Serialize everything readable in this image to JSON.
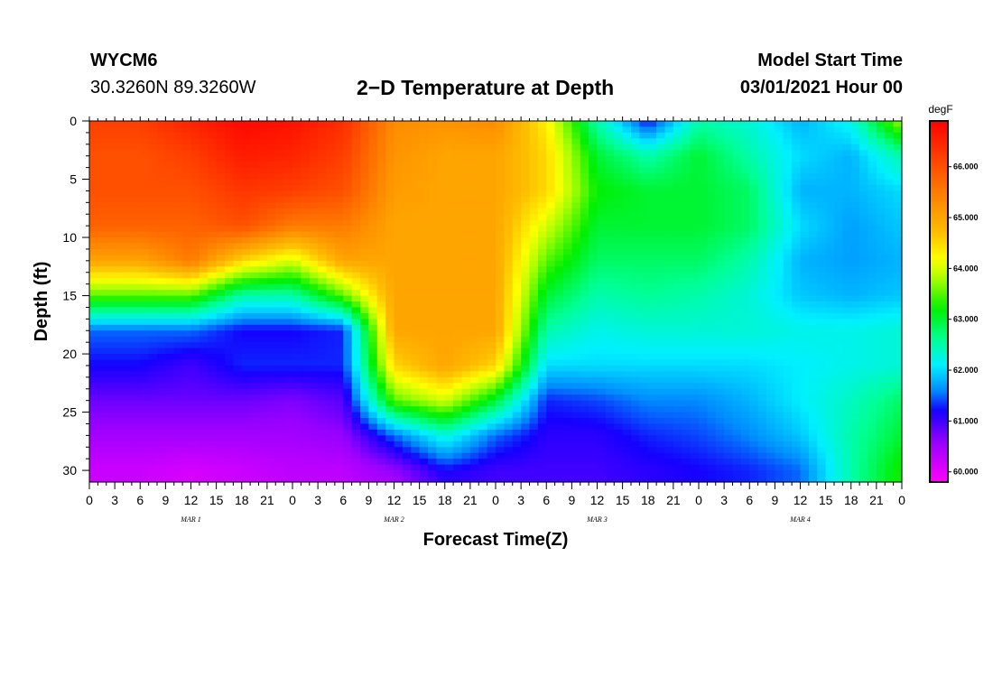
{
  "header": {
    "station": "WYCM6",
    "coords": "30.3260N 89.3260W",
    "title": "2−D Temperature at Depth",
    "start_label": "Model Start Time",
    "start_time": "03/01/2021 Hour 00"
  },
  "chart_data": {
    "type": "heatmap",
    "title": "2−D Temperature at Depth",
    "xlabel": "Forecast Time(Z)",
    "ylabel": "Depth (ft)",
    "x_hours": [
      0,
      96
    ],
    "x_tick_labels": [
      "0",
      "3",
      "6",
      "9",
      "12",
      "15",
      "18",
      "21",
      "0",
      "3",
      "6",
      "9",
      "12",
      "15",
      "18",
      "21",
      "0",
      "3",
      "6",
      "9",
      "12",
      "15",
      "18",
      "21",
      "0",
      "3",
      "6",
      "9",
      "12",
      "15",
      "18",
      "21",
      "0"
    ],
    "date_labels": [
      {
        "text": "MAR  1",
        "hour": 12
      },
      {
        "text": "MAR  2",
        "hour": 36
      },
      {
        "text": "MAR  3",
        "hour": 60
      },
      {
        "text": "MAR  4",
        "hour": 84
      }
    ],
    "ylim": [
      0,
      31
    ],
    "y_ticks": [
      0,
      5,
      10,
      15,
      20,
      25,
      30
    ],
    "colorbar": {
      "unit": "degF",
      "range": [
        59.8,
        66.9
      ],
      "ticks": [
        60,
        61,
        62,
        63,
        64,
        65,
        66
      ],
      "tick_labels": [
        "60.000",
        "61.000",
        "62.000",
        "63.000",
        "64.000",
        "65.000",
        "66.000"
      ]
    },
    "depths_ft": [
      0,
      3,
      6,
      9,
      12,
      15,
      18,
      21,
      24,
      27,
      30,
      31
    ],
    "times_hr": [
      0,
      6,
      12,
      18,
      24,
      30,
      36,
      42,
      48,
      54,
      60,
      66,
      72,
      78,
      84,
      90,
      96
    ],
    "temperature_degF": [
      [
        66.2,
        66.2,
        66.5,
        66.8,
        66.7,
        66.4,
        65.3,
        65.2,
        65.3,
        64.3,
        62.5,
        61.2,
        62.5,
        62.3,
        61.8,
        62.2,
        63.8
      ],
      [
        66.0,
        66.0,
        66.2,
        66.6,
        66.5,
        66.2,
        65.2,
        65.0,
        65.0,
        64.5,
        63.0,
        62.5,
        63.0,
        62.5,
        62.0,
        61.8,
        62.5
      ],
      [
        66.0,
        66.0,
        66.0,
        66.3,
        66.2,
        66.0,
        65.1,
        65.0,
        65.0,
        64.5,
        63.2,
        63.0,
        63.0,
        62.8,
        61.8,
        61.8,
        62.0
      ],
      [
        65.8,
        65.8,
        65.8,
        66.0,
        65.5,
        65.5,
        65.0,
        65.0,
        65.0,
        64.0,
        63.0,
        63.0,
        63.0,
        62.8,
        62.0,
        61.7,
        61.9
      ],
      [
        65.0,
        65.0,
        65.5,
        64.5,
        64.0,
        65.0,
        65.0,
        65.0,
        65.0,
        63.5,
        62.8,
        62.8,
        62.8,
        62.5,
        61.8,
        61.7,
        61.8
      ],
      [
        63.5,
        63.5,
        63.5,
        62.5,
        62.5,
        63.5,
        65.0,
        65.0,
        65.0,
        63.0,
        62.5,
        62.6,
        62.5,
        62.3,
        61.9,
        61.8,
        61.9
      ],
      [
        61.5,
        61.5,
        61.5,
        61.2,
        61.2,
        61.3,
        65.0,
        65.0,
        65.0,
        62.5,
        62.2,
        62.3,
        62.3,
        62.3,
        62.2,
        62.2,
        62.3
      ],
      [
        61.2,
        61.2,
        61.0,
        61.3,
        61.3,
        61.3,
        64.5,
        65.0,
        64.5,
        62.0,
        62.0,
        62.0,
        62.0,
        62.0,
        62.1,
        62.2,
        62.3
      ],
      [
        60.8,
        60.8,
        60.8,
        60.8,
        60.7,
        60.9,
        63.5,
        64.0,
        63.0,
        61.3,
        61.4,
        61.6,
        61.6,
        61.8,
        62.1,
        62.4,
        62.8
      ],
      [
        60.5,
        60.5,
        60.5,
        60.5,
        60.5,
        60.6,
        61.5,
        62.3,
        61.5,
        61.1,
        61.1,
        61.3,
        61.4,
        61.6,
        61.9,
        62.5,
        63.0
      ],
      [
        60.2,
        60.2,
        60.1,
        60.2,
        60.3,
        60.3,
        60.6,
        61.2,
        61.0,
        61.0,
        61.0,
        61.1,
        61.2,
        61.3,
        61.5,
        62.5,
        63.3
      ],
      [
        60.2,
        60.2,
        60.1,
        60.2,
        60.3,
        60.3,
        60.5,
        61.1,
        61.0,
        61.0,
        61.0,
        61.1,
        61.2,
        61.3,
        61.5,
        62.5,
        63.3
      ]
    ]
  }
}
